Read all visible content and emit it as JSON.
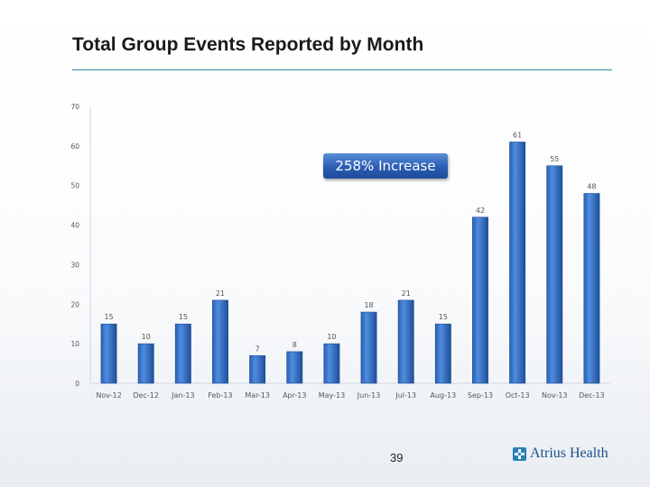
{
  "slide": {
    "title": "Total Group Events Reported by Month",
    "page_number": "39",
    "logo_text": "Atrius Health"
  },
  "callout": {
    "text": "258% Increase"
  },
  "colors": {
    "bar": "#3f7dd0",
    "bar_dark": "#1f4e98",
    "rule": "#2f8fa8",
    "logo": "#1b4d8c"
  },
  "chart_data": {
    "type": "bar",
    "categories": [
      "Nov-12",
      "Dec-12",
      "Jan-13",
      "Feb-13",
      "Mar-13",
      "Apr-13",
      "May-13",
      "Jun-13",
      "Jul-13",
      "Aug-13",
      "Sep-13",
      "Oct-13",
      "Nov-13",
      "Dec-13"
    ],
    "values": [
      15,
      10,
      15,
      21,
      7,
      8,
      10,
      18,
      21,
      15,
      42,
      61,
      55,
      48
    ],
    "title": "Total Group Events Reported by Month",
    "xlabel": "",
    "ylabel": "",
    "ylim": [
      0,
      70
    ],
    "yticks": [
      0,
      10,
      20,
      30,
      40,
      50,
      60,
      70
    ],
    "grid": false,
    "legend": "none",
    "annotations": [
      "258% Increase"
    ]
  }
}
